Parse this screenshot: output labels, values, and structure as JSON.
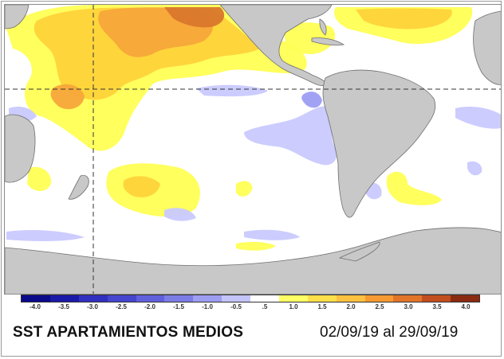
{
  "map": {
    "colors": {
      "land": "#c8c8c8",
      "coast": "#6e6e6e",
      "warm_light": "#ffff55",
      "warm_mid": "#ffd33a",
      "warm_strong": "#f7a73a",
      "warm_hot": "#d9772c",
      "warm_extreme": "#a6481e",
      "cool_light": "#c9c9ff",
      "cool_mid": "#9d9df4",
      "guide_line": "#333333"
    }
  },
  "legend": {
    "labels": [
      "-4.0",
      "-3.5",
      "-3.0",
      "-2.5",
      "-2.0",
      "-1.5",
      "-1.0",
      "-0.5",
      ".5",
      "1.0",
      "1.5",
      "2.0",
      "2.5",
      "3.0",
      "3.5",
      "4.0"
    ],
    "colors": [
      "#0a0a8a",
      "#1a1aa8",
      "#3030c0",
      "#4545cf",
      "#6060dd",
      "#7c7ce6",
      "#9d9df2",
      "#c4c4fb",
      "#ffffff",
      "#ffff66",
      "#ffe04a",
      "#ffc140",
      "#f79a32",
      "#e27428",
      "#c24e1e",
      "#8a2a12"
    ]
  },
  "caption": {
    "title": "SST APARTAMIENTOS MEDIOS",
    "dates": "02/09/19 al 29/09/19"
  }
}
